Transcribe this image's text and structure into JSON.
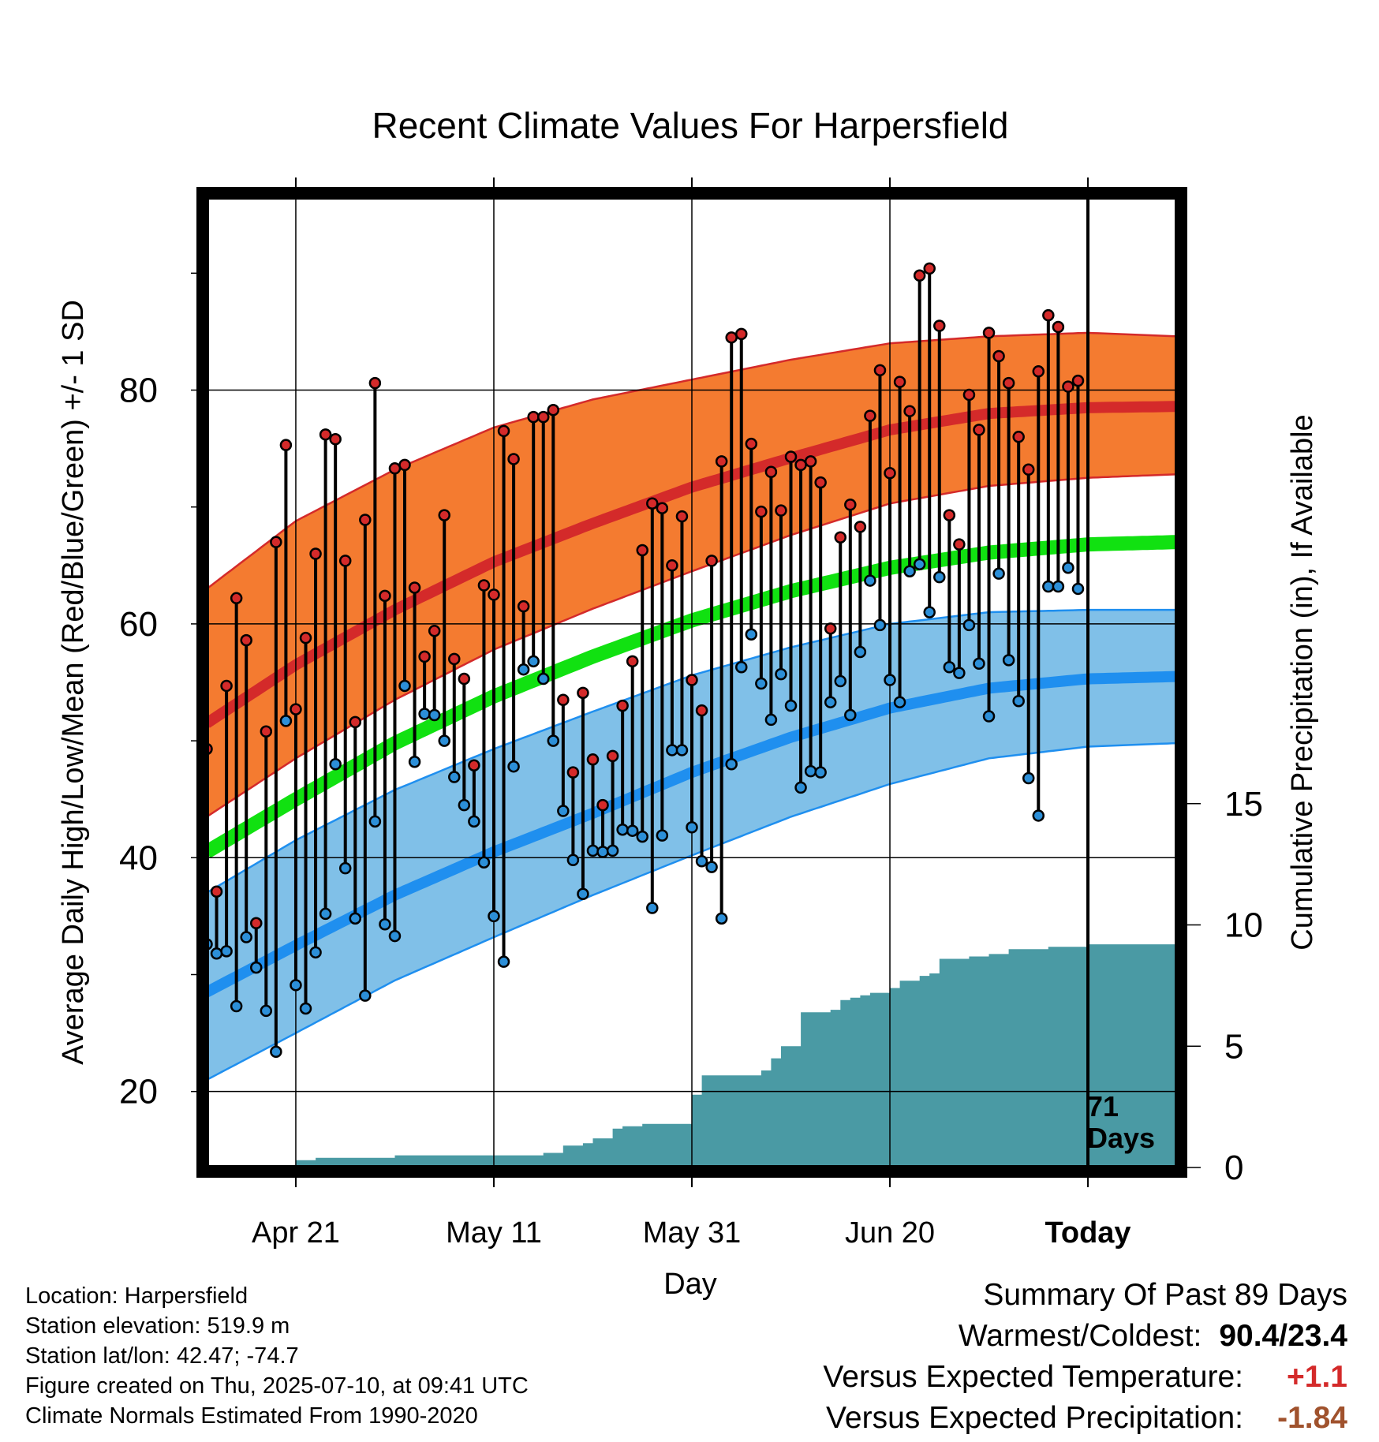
{
  "chart_data": {
    "type": "line",
    "title": "Recent Climate Values For Harpersfield",
    "xlabel": "Day",
    "ylabel": "Average Daily High/Low/Mean (Red/Blue/Green) +/- 1 SD",
    "y2label": "Cumulative Precipitation (in), If Available",
    "x_tick_labels": [
      "Apr 21",
      "May 11",
      "May 31",
      "Jun 20",
      "Today"
    ],
    "x_day_range": [
      -89,
      9
    ],
    "x_tick_days": [
      -80,
      -60,
      -40,
      -20,
      0
    ],
    "ylim": [
      13.5,
      96.5
    ],
    "y_ticks": [
      20,
      40,
      60,
      80
    ],
    "y2lim": [
      0,
      40
    ],
    "y2_ticks": [
      0,
      5,
      10,
      15
    ],
    "grid": true,
    "today_marker": {
      "label_line1": "71",
      "label_line2": "Days"
    },
    "normals": {
      "days": [
        -89,
        -80,
        -70,
        -60,
        -50,
        -40,
        -30,
        -20,
        -10,
        0,
        9
      ],
      "high_mean": [
        51.5,
        56.5,
        61.2,
        65.3,
        68.6,
        71.7,
        74.2,
        76.6,
        78.0,
        78.5,
        78.6
      ],
      "high_upper": [
        63.0,
        68.8,
        73.2,
        76.8,
        79.2,
        80.9,
        82.6,
        84.0,
        84.6,
        84.9,
        84.6
      ],
      "high_lower": [
        43.5,
        48.5,
        53.5,
        57.8,
        61.3,
        64.5,
        67.6,
        70.3,
        71.8,
        72.5,
        72.8
      ],
      "mean": [
        40.5,
        45.0,
        49.8,
        53.8,
        57.2,
        60.3,
        62.8,
        64.8,
        66.1,
        66.8,
        67.0
      ],
      "low_mean": [
        28.5,
        32.5,
        36.8,
        40.5,
        43.8,
        47.3,
        50.3,
        52.8,
        54.5,
        55.3,
        55.5
      ],
      "low_upper": [
        37.0,
        41.5,
        45.8,
        49.3,
        52.5,
        55.6,
        58.0,
        60.0,
        61.0,
        61.2,
        61.2
      ],
      "low_lower": [
        21.0,
        25.0,
        29.5,
        33.2,
        36.8,
        40.2,
        43.5,
        46.3,
        48.5,
        49.5,
        49.8
      ]
    },
    "daily_highs": [
      49.3,
      37.1,
      54.7,
      62.2,
      58.6,
      34.4,
      50.8,
      67.0,
      75.3,
      52.7,
      58.8,
      66.0,
      76.2,
      75.8,
      65.4,
      51.6,
      68.9,
      80.6,
      62.4,
      73.3,
      73.6,
      63.1,
      57.2,
      59.4,
      69.3,
      57.0,
      55.3,
      47.9,
      63.3,
      62.5,
      76.5,
      74.1,
      61.5,
      77.7,
      77.7,
      78.3,
      53.5,
      47.3,
      54.1,
      48.4,
      44.5,
      48.7,
      53.0,
      56.8,
      66.3,
      70.3,
      69.9,
      65.0,
      69.2,
      55.2,
      52.6,
      65.4,
      73.9,
      84.5,
      84.8,
      75.4,
      69.6,
      73.0,
      69.7,
      74.3,
      73.6,
      73.9,
      72.1,
      59.6,
      67.4,
      70.2,
      68.3,
      77.8,
      81.7,
      72.9,
      80.7,
      78.2,
      89.8,
      90.4,
      85.5,
      69.3,
      66.8,
      79.6,
      76.6,
      84.9,
      82.9,
      80.6,
      76.0,
      73.2,
      81.6,
      86.4,
      85.4,
      80.3,
      80.8
    ],
    "daily_lows": [
      32.6,
      31.8,
      32.0,
      27.3,
      33.2,
      30.6,
      26.9,
      23.4,
      51.7,
      29.1,
      27.1,
      31.9,
      35.2,
      48.0,
      39.1,
      34.8,
      28.2,
      43.1,
      34.3,
      33.3,
      54.7,
      48.2,
      52.3,
      52.2,
      50.0,
      46.9,
      44.5,
      43.1,
      39.6,
      35.0,
      31.1,
      47.8,
      56.1,
      56.8,
      55.3,
      50.0,
      44.0,
      39.8,
      36.9,
      40.6,
      40.5,
      40.6,
      42.4,
      42.3,
      41.8,
      35.7,
      41.9,
      49.2,
      49.2,
      42.6,
      39.7,
      39.2,
      34.8,
      48.0,
      56.3,
      59.1,
      54.9,
      51.8,
      55.7,
      53.0,
      46.0,
      47.4,
      47.3,
      53.3,
      55.1,
      52.2,
      57.6,
      63.7,
      59.9,
      55.2,
      53.3,
      64.5,
      65.1,
      61.0,
      64.0,
      56.3,
      55.8,
      59.9,
      56.6,
      52.1,
      64.3,
      56.9,
      53.4,
      46.8,
      43.6,
      63.2,
      63.2,
      64.8,
      63.0
    ],
    "precip_cumulative": {
      "days": [
        -89,
        -85,
        -80,
        -78,
        -70,
        -60,
        -55,
        -53,
        -51,
        -50,
        -48,
        -47,
        -45,
        -44,
        -41,
        -40,
        -39,
        -38,
        -35,
        -33,
        -32,
        -31,
        -29,
        -27,
        -26,
        -25,
        -24,
        -23,
        -22,
        -20,
        -19,
        -17,
        -16,
        -15,
        -14,
        -12,
        -10,
        -8,
        -6,
        -4,
        -2,
        0,
        9
      ],
      "values": [
        0.0,
        0.1,
        0.3,
        0.4,
        0.5,
        0.5,
        0.6,
        0.9,
        1.0,
        1.2,
        1.6,
        1.7,
        1.8,
        1.8,
        1.8,
        3.0,
        3.8,
        3.8,
        3.8,
        4.0,
        4.5,
        5.0,
        6.4,
        6.4,
        6.5,
        6.9,
        7.0,
        7.1,
        7.2,
        7.4,
        7.7,
        7.9,
        8.0,
        8.6,
        8.6,
        8.7,
        8.8,
        9.0,
        9.0,
        9.1,
        9.1,
        9.2,
        9.2
      ]
    }
  },
  "station": {
    "location": "Location: Harpersfield",
    "elevation": "Station elevation: 519.9 m",
    "latlon": "Station lat/lon: 42.47; -74.7",
    "created": "Figure created on Thu, 2025-07-10, at 09:41 UTC",
    "normals_period": "Climate Normals Estimated From 1990-2020"
  },
  "summary": {
    "heading": "Summary Of Past 89 Days",
    "warm_cold_label": "Warmest/Coldest:",
    "warm_cold_value": "90.4/23.4",
    "temp_label": "Versus Expected Temperature:",
    "temp_value": "+1.1",
    "precip_label": "Versus Expected Precipitation:",
    "precip_value": "-1.84"
  },
  "colors": {
    "high_band": "#f47b30",
    "high_line": "#d42a2a",
    "low_band": "#80c0e8",
    "low_line": "#1f8fef",
    "mean_line": "#11e111",
    "precip": "#4a9aa4",
    "high_dot": "#d42a2a",
    "low_dot": "#2c8fd8",
    "temp_value": "#d42a2a",
    "precip_value": "#a0522d"
  }
}
